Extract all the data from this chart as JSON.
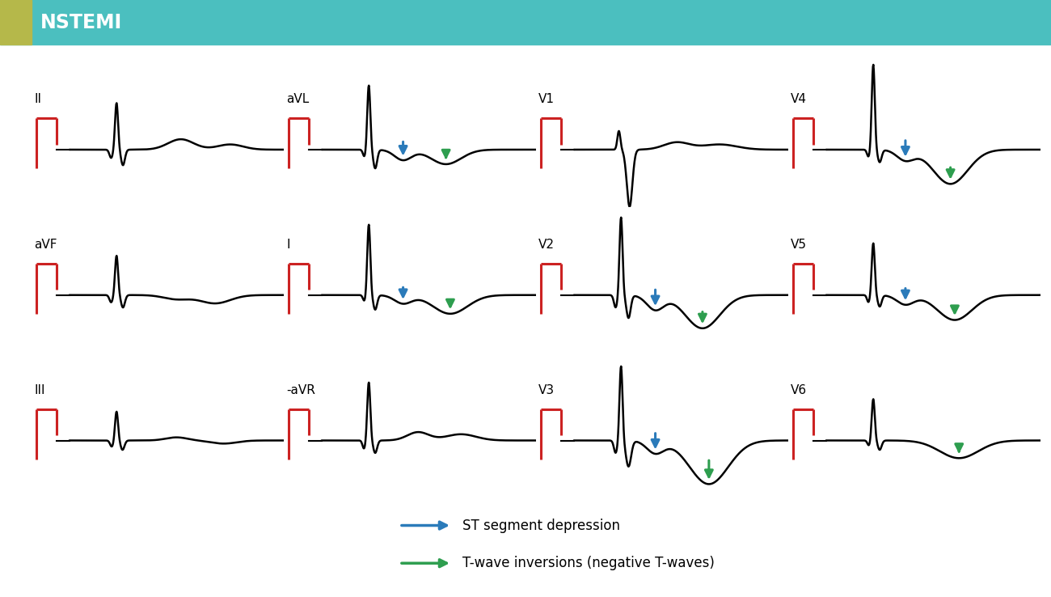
{
  "title": "NSTEMI",
  "title_bg": "#4bbfbf",
  "title_accent": "#b5b84a",
  "title_text_color": "#ffffff",
  "bg_color": "#ffffff",
  "ecg_color": "#000000",
  "pwave_color": "#cc2222",
  "arrow_blue": "#2b7bba",
  "arrow_green": "#2e9e4f",
  "leads": [
    {
      "name": "II",
      "row": 0,
      "col": 0,
      "type": "normal_small",
      "arrows": []
    },
    {
      "name": "aVL",
      "row": 0,
      "col": 1,
      "type": "st_dep_t_inv",
      "arrows": [
        "blue",
        "green"
      ]
    },
    {
      "name": "V1",
      "row": 0,
      "col": 2,
      "type": "v1",
      "arrows": []
    },
    {
      "name": "V4",
      "row": 0,
      "col": 3,
      "type": "v4_deep",
      "arrows": [
        "blue",
        "green"
      ]
    },
    {
      "name": "aVF",
      "row": 1,
      "col": 0,
      "type": "avf",
      "arrows": []
    },
    {
      "name": "I",
      "row": 1,
      "col": 1,
      "type": "lead_I",
      "arrows": [
        "blue",
        "green"
      ]
    },
    {
      "name": "V2",
      "row": 1,
      "col": 2,
      "type": "v2",
      "arrows": [
        "blue",
        "green"
      ]
    },
    {
      "name": "V5",
      "row": 1,
      "col": 3,
      "type": "v5",
      "arrows": [
        "blue",
        "green"
      ]
    },
    {
      "name": "III",
      "row": 2,
      "col": 0,
      "type": "lead_III",
      "arrows": []
    },
    {
      "name": "-aVR",
      "row": 2,
      "col": 1,
      "type": "avr",
      "arrows": []
    },
    {
      "name": "V3",
      "row": 2,
      "col": 2,
      "type": "v3",
      "arrows": [
        "blue",
        "green"
      ]
    },
    {
      "name": "V6",
      "row": 2,
      "col": 3,
      "type": "v6",
      "arrows": [
        "green"
      ]
    }
  ],
  "legend": [
    {
      "color": "#2b7bba",
      "text": "ST segment depression"
    },
    {
      "color": "#2e9e4f",
      "text": "T-wave inversions (negative T-waves)"
    }
  ]
}
